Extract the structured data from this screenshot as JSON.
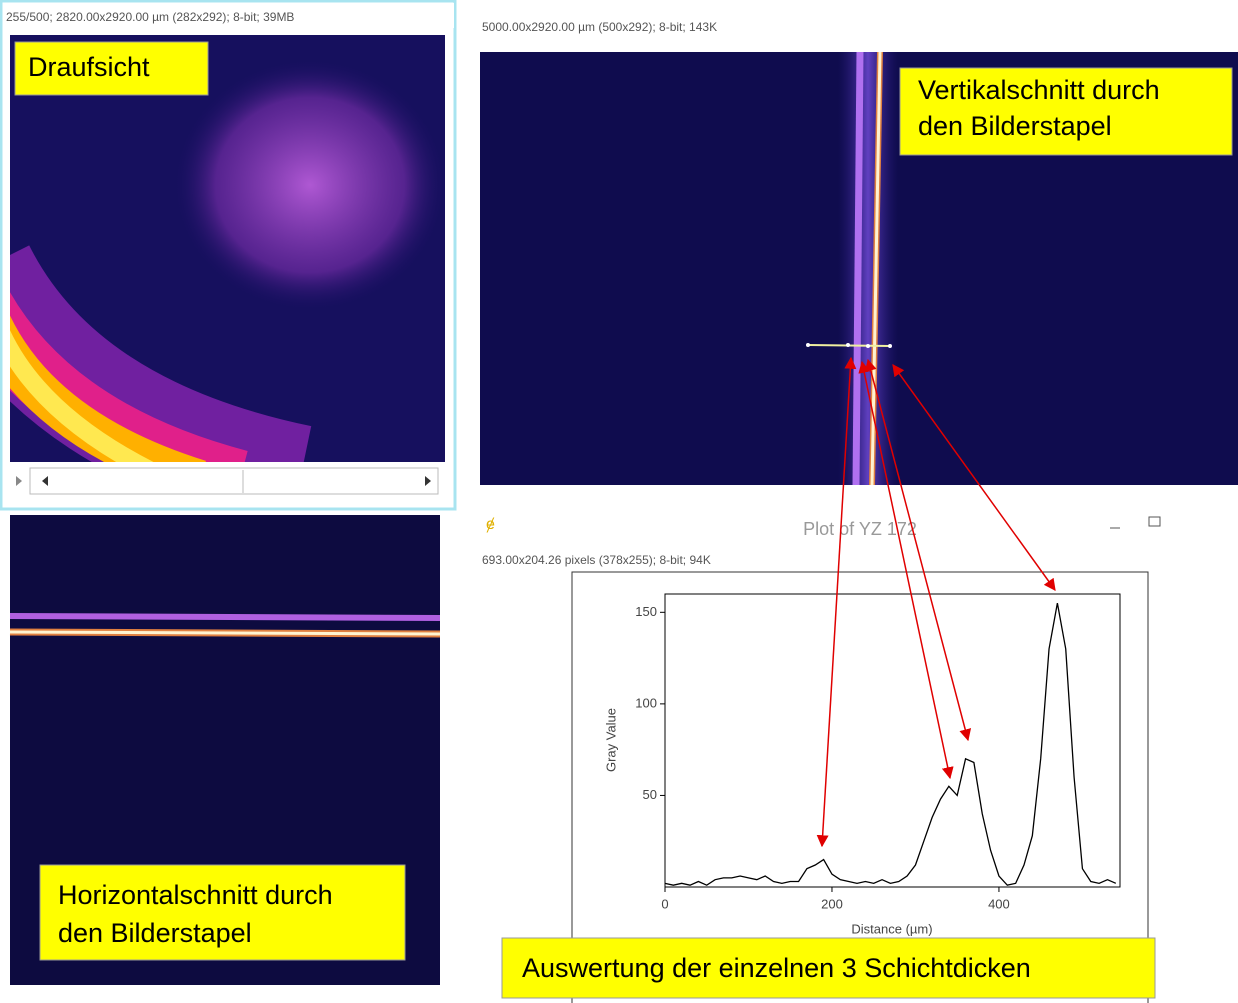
{
  "windows": {
    "top_view": {
      "info": "255/500; 2820.00x2920.00 µm (282x292); 8-bit; 39MB",
      "label": "Draufsicht"
    },
    "horizontal_section": {
      "label": [
        "Horizontalschnitt durch",
        "den Bilderstapel"
      ]
    },
    "vertical_section": {
      "info": "5000.00x2920.00 µm (500x292); 8-bit; 143K",
      "label": [
        "Vertikalschnitt durch",
        "den Bilderstapel"
      ]
    },
    "plot": {
      "title": "Plot of YZ 172",
      "info": "693.00x204.26 pixels (378x255); 8-bit; 94K"
    }
  },
  "chart_data": {
    "type": "line",
    "xlabel": "Distance (µm)",
    "ylabel": "Gray Value",
    "x": [
      0,
      10,
      20,
      30,
      40,
      50,
      60,
      70,
      80,
      90,
      100,
      110,
      120,
      130,
      140,
      150,
      160,
      170,
      180,
      190,
      200,
      210,
      220,
      230,
      240,
      250,
      260,
      270,
      280,
      290,
      300,
      310,
      320,
      330,
      340,
      350,
      360,
      370,
      380,
      390,
      400,
      410,
      420,
      430,
      440,
      450,
      460,
      470,
      480,
      490,
      500,
      510,
      520,
      530,
      540
    ],
    "series": [
      {
        "color": "#000000",
        "values": [
          2,
          1,
          2,
          1,
          3,
          1,
          4,
          5,
          5,
          6,
          5,
          4,
          6,
          3,
          2,
          3,
          3,
          10,
          12,
          15,
          7,
          4,
          3,
          2,
          3,
          2,
          4,
          2,
          3,
          6,
          12,
          25,
          38,
          48,
          55,
          50,
          70,
          68,
          40,
          20,
          6,
          1,
          2,
          12,
          28,
          70,
          130,
          155,
          130,
          60,
          10,
          3,
          2,
          4,
          2
        ]
      }
    ],
    "xlim": [
      0,
      545
    ],
    "ylim": [
      0,
      160
    ],
    "xticks": [
      0,
      200,
      400
    ],
    "yticks": [
      50,
      100,
      150
    ]
  },
  "caption": "Auswertung der einzelnen 3 Schichtdicken"
}
